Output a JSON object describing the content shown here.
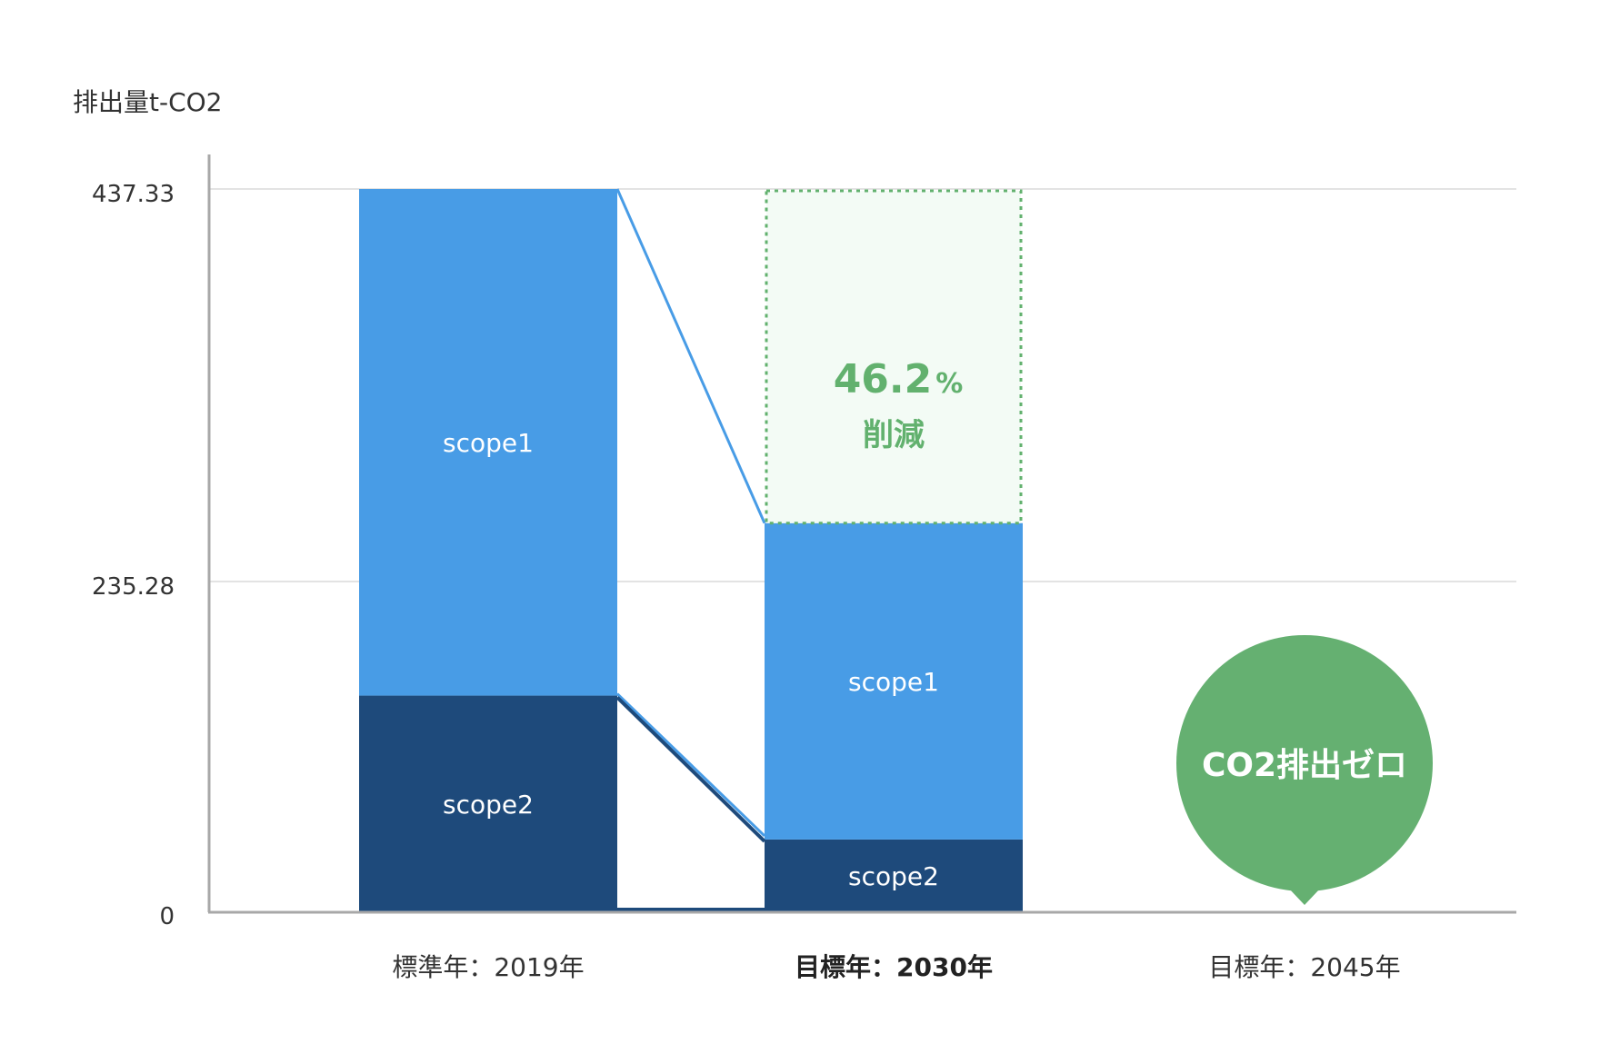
{
  "chart_data": {
    "type": "bar",
    "stacked": true,
    "ylabel": "排出量t-CO2",
    "y_ticks": [
      "0",
      "235.28",
      "437.33"
    ],
    "ylim": [
      0,
      437.33
    ],
    "categories": [
      "標準年：2019年",
      "目標年：2030年",
      "目標年：2045年"
    ],
    "highlight_category": "目標年：2030年",
    "series": [
      {
        "name": "scope2",
        "values": [
          131,
          44,
          0
        ]
      },
      {
        "name": "scope1",
        "values": [
          306.33,
          191.28,
          0
        ]
      }
    ],
    "reduction_note": {
      "value": "46.2",
      "unit": "%",
      "label": "削減"
    },
    "zero_badge": "CO2排出ゼロ",
    "colors": {
      "scope1": "#489ce6",
      "scope2": "#1e4a7b",
      "reduction": "#62b16e",
      "reduction_fill": "#f3fbf5",
      "badge": "#65b071",
      "axis": "#a8a8a8",
      "grid": "#e3e3e3"
    }
  }
}
